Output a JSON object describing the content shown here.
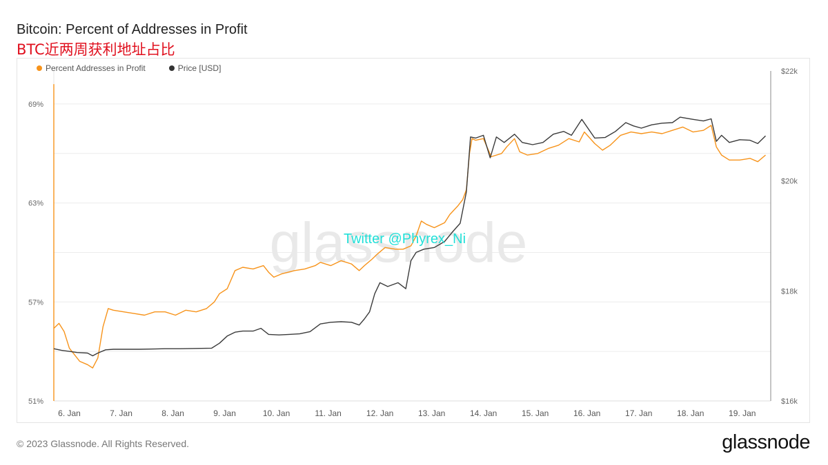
{
  "header": {
    "title": "Bitcoin: Percent of Addresses in Profit",
    "subtitle": "BTC近两周获利地址占比"
  },
  "watermark": {
    "logo_text": "glassnode",
    "overlay_text": "Twitter @Phyrex_Ni"
  },
  "footer": {
    "copyright": "© 2023 Glassnode. All Rights Reserved.",
    "logo": "glassnode"
  },
  "colors": {
    "profit_series": "#f7931a",
    "price_series": "#3a3a3a",
    "overlay_text": "#22e0d8",
    "grid": "#ececec"
  },
  "chart_data": {
    "type": "line",
    "legend_position": "top-left",
    "grid": true,
    "x_ticks": [
      "6. Jan",
      "7. Jan",
      "8. Jan",
      "9. Jan",
      "10. Jan",
      "11. Jan",
      "12. Jan",
      "13. Jan",
      "14. Jan",
      "15. Jan",
      "16. Jan",
      "17. Jan",
      "18. Jan",
      "19. Jan"
    ],
    "x_range": [
      5.85,
      19.7
    ],
    "y_left": {
      "ticks": [
        "51%",
        "57%",
        "63%",
        "69%"
      ],
      "tick_values": [
        51,
        57,
        63,
        69
      ],
      "range": [
        51,
        71
      ]
    },
    "y_right": {
      "ticks": [
        "$16k",
        "$18k",
        "$20k",
        "$22k"
      ],
      "tick_values": [
        16000,
        18000,
        20000,
        22000
      ],
      "range": [
        16000,
        22000
      ]
    },
    "series": [
      {
        "name": "Percent Addresses in Profit",
        "axis": "left",
        "points": [
          [
            5.85,
            55.4
          ],
          [
            5.95,
            55.7
          ],
          [
            6.05,
            55.2
          ],
          [
            6.15,
            54.2
          ],
          [
            6.25,
            53.8
          ],
          [
            6.35,
            53.4
          ],
          [
            6.5,
            53.2
          ],
          [
            6.6,
            53.0
          ],
          [
            6.7,
            53.6
          ],
          [
            6.8,
            55.5
          ],
          [
            6.9,
            56.6
          ],
          [
            7.0,
            56.5
          ],
          [
            7.2,
            56.4
          ],
          [
            7.4,
            56.3
          ],
          [
            7.6,
            56.2
          ],
          [
            7.8,
            56.4
          ],
          [
            8.0,
            56.4
          ],
          [
            8.2,
            56.2
          ],
          [
            8.4,
            56.5
          ],
          [
            8.6,
            56.4
          ],
          [
            8.8,
            56.6
          ],
          [
            8.95,
            57.0
          ],
          [
            9.05,
            57.5
          ],
          [
            9.2,
            57.8
          ],
          [
            9.35,
            58.9
          ],
          [
            9.5,
            59.1
          ],
          [
            9.7,
            59.0
          ],
          [
            9.9,
            59.2
          ],
          [
            10.0,
            58.8
          ],
          [
            10.1,
            58.5
          ],
          [
            10.25,
            58.7
          ],
          [
            10.5,
            58.9
          ],
          [
            10.7,
            59.0
          ],
          [
            10.9,
            59.2
          ],
          [
            11.0,
            59.4
          ],
          [
            11.2,
            59.2
          ],
          [
            11.4,
            59.5
          ],
          [
            11.6,
            59.3
          ],
          [
            11.75,
            58.9
          ],
          [
            11.85,
            59.2
          ],
          [
            12.0,
            59.6
          ],
          [
            12.1,
            59.9
          ],
          [
            12.25,
            60.3
          ],
          [
            12.45,
            60.2
          ],
          [
            12.6,
            60.2
          ],
          [
            12.75,
            60.4
          ],
          [
            12.85,
            61.0
          ],
          [
            12.95,
            61.9
          ],
          [
            13.05,
            61.7
          ],
          [
            13.2,
            61.5
          ],
          [
            13.4,
            61.8
          ],
          [
            13.5,
            62.3
          ],
          [
            13.65,
            62.8
          ],
          [
            13.75,
            63.2
          ],
          [
            13.82,
            63.8
          ],
          [
            13.88,
            66.0
          ],
          [
            13.93,
            66.9
          ],
          [
            14.0,
            66.8
          ],
          [
            14.15,
            66.9
          ],
          [
            14.3,
            65.8
          ],
          [
            14.5,
            66.0
          ],
          [
            14.6,
            66.4
          ],
          [
            14.75,
            66.9
          ],
          [
            14.85,
            66.1
          ],
          [
            15.0,
            65.9
          ],
          [
            15.2,
            66.0
          ],
          [
            15.4,
            66.3
          ],
          [
            15.6,
            66.5
          ],
          [
            15.8,
            66.9
          ],
          [
            16.0,
            66.7
          ],
          [
            16.1,
            67.3
          ],
          [
            16.3,
            66.6
          ],
          [
            16.45,
            66.2
          ],
          [
            16.6,
            66.5
          ],
          [
            16.8,
            67.1
          ],
          [
            17.0,
            67.3
          ],
          [
            17.2,
            67.2
          ],
          [
            17.4,
            67.3
          ],
          [
            17.6,
            67.2
          ],
          [
            17.8,
            67.4
          ],
          [
            18.0,
            67.6
          ],
          [
            18.2,
            67.3
          ],
          [
            18.4,
            67.4
          ],
          [
            18.55,
            67.7
          ],
          [
            18.65,
            66.4
          ],
          [
            18.75,
            65.9
          ],
          [
            18.9,
            65.6
          ],
          [
            19.1,
            65.6
          ],
          [
            19.3,
            65.7
          ],
          [
            19.45,
            65.5
          ],
          [
            19.6,
            65.9
          ]
        ]
      },
      {
        "name": "Price [USD]",
        "axis": "right",
        "points": [
          [
            5.85,
            16950
          ],
          [
            6.0,
            16920
          ],
          [
            6.15,
            16900
          ],
          [
            6.3,
            16880
          ],
          [
            6.5,
            16870
          ],
          [
            6.6,
            16820
          ],
          [
            6.7,
            16870
          ],
          [
            6.85,
            16930
          ],
          [
            7.0,
            16940
          ],
          [
            7.2,
            16940
          ],
          [
            7.5,
            16940
          ],
          [
            7.8,
            16945
          ],
          [
            8.0,
            16950
          ],
          [
            8.3,
            16950
          ],
          [
            8.6,
            16955
          ],
          [
            8.9,
            16960
          ],
          [
            9.05,
            17050
          ],
          [
            9.2,
            17180
          ],
          [
            9.35,
            17250
          ],
          [
            9.5,
            17270
          ],
          [
            9.7,
            17270
          ],
          [
            9.85,
            17320
          ],
          [
            10.0,
            17210
          ],
          [
            10.2,
            17200
          ],
          [
            10.4,
            17210
          ],
          [
            10.6,
            17220
          ],
          [
            10.8,
            17260
          ],
          [
            11.0,
            17400
          ],
          [
            11.2,
            17430
          ],
          [
            11.4,
            17440
          ],
          [
            11.6,
            17430
          ],
          [
            11.75,
            17380
          ],
          [
            11.85,
            17490
          ],
          [
            11.95,
            17620
          ],
          [
            12.05,
            17950
          ],
          [
            12.15,
            18150
          ],
          [
            12.3,
            18080
          ],
          [
            12.5,
            18150
          ],
          [
            12.65,
            18040
          ],
          [
            12.75,
            18550
          ],
          [
            12.85,
            18700
          ],
          [
            13.0,
            18760
          ],
          [
            13.2,
            18790
          ],
          [
            13.4,
            18900
          ],
          [
            13.55,
            19070
          ],
          [
            13.7,
            19230
          ],
          [
            13.82,
            19800
          ],
          [
            13.9,
            20800
          ],
          [
            14.0,
            20780
          ],
          [
            14.15,
            20830
          ],
          [
            14.28,
            20420
          ],
          [
            14.4,
            20800
          ],
          [
            14.55,
            20700
          ],
          [
            14.75,
            20850
          ],
          [
            14.9,
            20700
          ],
          [
            15.1,
            20660
          ],
          [
            15.3,
            20700
          ],
          [
            15.5,
            20850
          ],
          [
            15.7,
            20900
          ],
          [
            15.85,
            20830
          ],
          [
            16.05,
            21120
          ],
          [
            16.3,
            20780
          ],
          [
            16.5,
            20790
          ],
          [
            16.7,
            20900
          ],
          [
            16.9,
            21060
          ],
          [
            17.05,
            21000
          ],
          [
            17.2,
            20960
          ],
          [
            17.4,
            21020
          ],
          [
            17.6,
            21050
          ],
          [
            17.8,
            21060
          ],
          [
            17.95,
            21160
          ],
          [
            18.2,
            21120
          ],
          [
            18.4,
            21090
          ],
          [
            18.55,
            21130
          ],
          [
            18.65,
            20720
          ],
          [
            18.75,
            20830
          ],
          [
            18.9,
            20700
          ],
          [
            19.1,
            20750
          ],
          [
            19.3,
            20740
          ],
          [
            19.45,
            20680
          ],
          [
            19.6,
            20820
          ]
        ]
      }
    ]
  }
}
